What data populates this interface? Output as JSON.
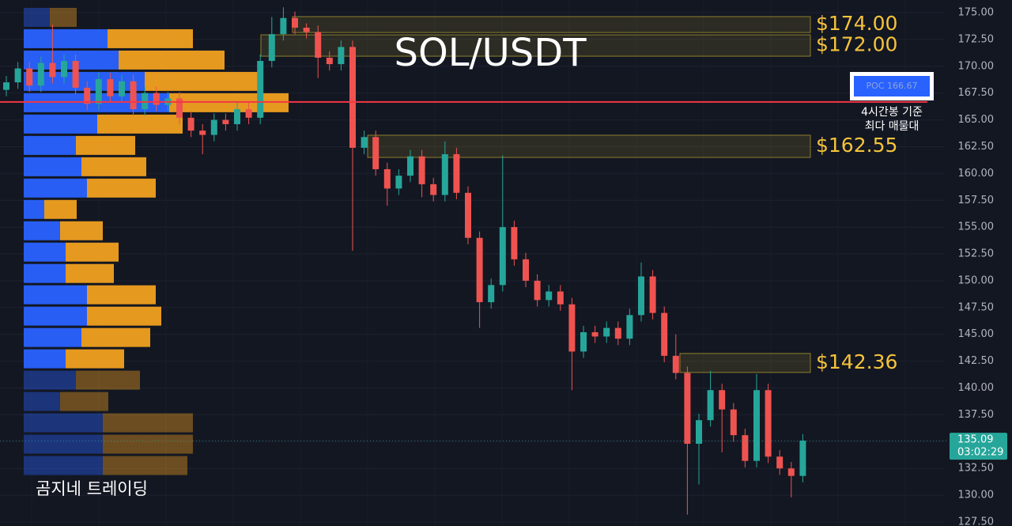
{
  "chart_data": {
    "type": "candlestick",
    "title": "SOL/USDT",
    "watermark": "곰지네 트레이딩",
    "ylim": [
      127.13,
      176.18
    ],
    "yticks": [
      {
        "value": 175,
        "label": "175.00"
      },
      {
        "value": 172.5,
        "label": "172.50"
      },
      {
        "value": 170,
        "label": "170.00"
      },
      {
        "value": 167.5,
        "label": "167.50"
      },
      {
        "value": 165,
        "label": "165.00"
      },
      {
        "value": 162.5,
        "label": "162.50"
      },
      {
        "value": 160,
        "label": "160.00"
      },
      {
        "value": 157.5,
        "label": "157.50"
      },
      {
        "value": 155,
        "label": "155.00"
      },
      {
        "value": 152.5,
        "label": "152.50"
      },
      {
        "value": 150,
        "label": "150.00"
      },
      {
        "value": 147.5,
        "label": "147.50"
      },
      {
        "value": 145,
        "label": "145.00"
      },
      {
        "value": 142.5,
        "label": "142.50"
      },
      {
        "value": 140,
        "label": "140.00"
      },
      {
        "value": 137.5,
        "label": "137.50"
      },
      {
        "value": 135,
        "label": "135.00"
      },
      {
        "value": 132.5,
        "label": "132.50"
      },
      {
        "value": 130,
        "label": "130.00"
      },
      {
        "value": 127.5,
        "label": "127.50"
      }
    ],
    "up_color": "#26a69a",
    "down_color": "#ef5350",
    "open": [
      167.8,
      168.5,
      169.8,
      168.2,
      170.3,
      169.0,
      170.5,
      168.0,
      166.5,
      168.8,
      167.2,
      168.6,
      166.0,
      167.5,
      166.4,
      167.0,
      165.2,
      164.0,
      163.6,
      165.0,
      164.6,
      166.0,
      165.2,
      170.5,
      173.0,
      174.5,
      173.6,
      173.2,
      170.8,
      170.2,
      171.8,
      162.4,
      163.4,
      160.4,
      158.6,
      159.8,
      161.6,
      159.0,
      158.0,
      161.8,
      158.2,
      154.0,
      148.0,
      149.6,
      155.0,
      152.0,
      150.0,
      148.2,
      149.0,
      147.8,
      143.4,
      145.2,
      144.8,
      145.6,
      144.6,
      146.8,
      150.4,
      147.0,
      143.0,
      141.4,
      134.8,
      137.0,
      139.8,
      138.0,
      135.6,
      133.2,
      139.8,
      133.6,
      132.5,
      131.8
    ],
    "high": [
      169.1,
      170.4,
      170.4,
      170.9,
      173.9,
      171.1,
      171.1,
      168.6,
      169.4,
      169.4,
      169.2,
      169.2,
      168.1,
      168.1,
      167.6,
      167.6,
      165.8,
      164.6,
      165.6,
      165.6,
      166.6,
      166.6,
      171.1,
      174.6,
      175.5,
      175.1,
      174.0,
      173.8,
      171.4,
      172.4,
      172.4,
      164.0,
      164.0,
      161.0,
      160.4,
      162.2,
      162.2,
      159.6,
      163.0,
      162.4,
      158.8,
      154.6,
      150.2,
      161.7,
      155.6,
      152.6,
      150.6,
      149.6,
      149.6,
      148.4,
      145.8,
      145.8,
      146.2,
      146.2,
      147.4,
      151.7,
      151.0,
      147.6,
      145.0,
      142.0,
      137.6,
      141.6,
      140.4,
      138.6,
      136.2,
      141.3,
      140.4,
      134.2,
      133.1,
      135.7
    ],
    "low": [
      167.2,
      167.9,
      167.6,
      167.6,
      168.4,
      168.4,
      167.4,
      165.9,
      165.9,
      166.6,
      166.6,
      165.4,
      165.4,
      165.8,
      165.8,
      164.6,
      163.4,
      161.8,
      163.0,
      164.0,
      164.0,
      164.6,
      164.6,
      169.9,
      172.4,
      173.0,
      172.6,
      168.9,
      169.6,
      169.6,
      152.8,
      161.8,
      159.8,
      157.0,
      158.0,
      159.2,
      157.8,
      157.4,
      157.4,
      157.6,
      153.4,
      145.6,
      147.4,
      149.0,
      151.4,
      149.4,
      147.6,
      147.6,
      147.2,
      139.8,
      142.8,
      144.2,
      144.2,
      144.0,
      144.0,
      146.2,
      146.4,
      142.4,
      140.8,
      128.2,
      131.0,
      136.4,
      134.0,
      135.0,
      132.6,
      132.6,
      133.0,
      131.9,
      129.8,
      131.2
    ],
    "close": [
      168.5,
      169.8,
      168.2,
      170.3,
      169.0,
      170.5,
      168.0,
      166.5,
      168.8,
      167.2,
      168.6,
      166.0,
      167.5,
      166.4,
      167.0,
      165.2,
      164.0,
      163.6,
      165.0,
      164.6,
      166.0,
      165.2,
      170.5,
      173.0,
      174.5,
      173.6,
      173.2,
      170.8,
      170.2,
      171.8,
      162.4,
      163.4,
      160.4,
      158.6,
      159.8,
      161.6,
      159.0,
      158.0,
      161.8,
      158.2,
      154.0,
      148.0,
      149.6,
      155.0,
      152.0,
      150.0,
      148.2,
      149.0,
      147.8,
      143.4,
      145.2,
      144.8,
      145.6,
      144.6,
      146.8,
      150.4,
      147.0,
      143.0,
      141.4,
      134.8,
      137.0,
      139.8,
      138.0,
      135.6,
      133.2,
      139.8,
      133.6,
      132.5,
      131.8,
      135.09
    ],
    "zones": [
      {
        "value": 174,
        "label": "$174.00",
        "low": 173.15,
        "high": 174.63
      },
      {
        "value": 172,
        "label": "$172.00",
        "low": 170.94,
        "high": 172.93
      },
      {
        "value": 162.55,
        "label": "$162.55",
        "low": 161.5,
        "high": 163.57
      },
      {
        "value": 142.36,
        "label": "$142.36",
        "low": 141.45,
        "high": 143.22
      }
    ],
    "poc": 166.67,
    "poc_label": "POC 166.67",
    "poc_note": [
      "4시간봉 기준",
      "최다 매물대"
    ],
    "last_price": 135.09,
    "countdown": "03:02:29",
    "volume_profile": {
      "prices": [
        174.56,
        172.57,
        170.58,
        168.59,
        166.6,
        164.61,
        162.62,
        160.63,
        158.64,
        156.65,
        154.66,
        152.67,
        150.68,
        148.69,
        146.7,
        144.71,
        142.72,
        140.73,
        138.74,
        136.75,
        134.76,
        132.77
      ],
      "buy": [
        33,
        106,
        120,
        153,
        184,
        93,
        66,
        73,
        80,
        26,
        46,
        53,
        53,
        80,
        80,
        73,
        53,
        66,
        46,
        100,
        100,
        100
      ],
      "sell": [
        34,
        108,
        134,
        147,
        151,
        108,
        75,
        82,
        87,
        41,
        54,
        67,
        61,
        87,
        94,
        87,
        74,
        81,
        61,
        114,
        114,
        107
      ],
      "buy_color": "#2962ff",
      "sell_color": "#f0a020",
      "value_area": [
        141.7,
        173.6
      ]
    }
  }
}
